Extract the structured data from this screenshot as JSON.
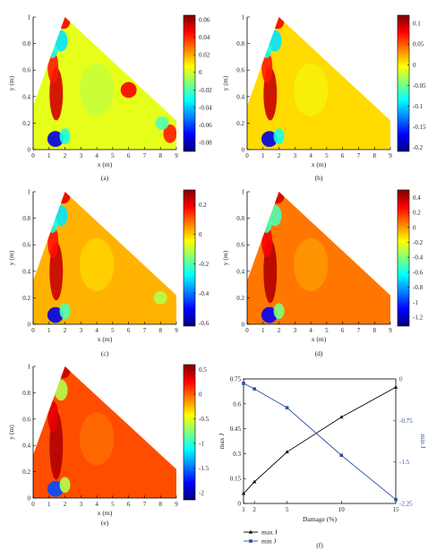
{
  "colormap": [
    "#00007f",
    "#0000ff",
    "#0080ff",
    "#00ffff",
    "#80ff80",
    "#ffff00",
    "#ff8000",
    "#ff0000",
    "#7f0000"
  ],
  "chart_data": [
    {
      "panel": "(a)",
      "type": "heatmap",
      "xlabel": "x (m)",
      "ylabel": "y (m)",
      "xlim": [
        0,
        9
      ],
      "ylim": [
        0,
        1
      ],
      "xticks": [
        "0",
        "1",
        "2",
        "3",
        "4",
        "5",
        "6",
        "7",
        "8",
        "9"
      ],
      "yticks": [
        "0",
        "0.2",
        "0.4",
        "0.6",
        "0.8",
        "1"
      ],
      "colorbar": {
        "min": -0.09,
        "max": 0.065,
        "ticks": [
          "0.06",
          "0.04",
          "0.02",
          "0",
          "-0.02",
          "-0.04",
          "-0.06",
          "-0.08"
        ]
      },
      "domain": "triangle with vertices (0,0.33), (2,1), (9,0.22), (9,0)"
    },
    {
      "panel": "(b)",
      "type": "heatmap",
      "xlabel": "x (m)",
      "ylabel": "y (m)",
      "xlim": [
        0,
        9
      ],
      "ylim": [
        0,
        1
      ],
      "xticks": [
        "0",
        "1",
        "2",
        "3",
        "4",
        "5",
        "6",
        "7",
        "8",
        "9"
      ],
      "yticks": [
        "0",
        "0.2",
        "0.4",
        "0.6",
        "0.8",
        "1"
      ],
      "colorbar": {
        "min": -0.21,
        "max": 0.12,
        "ticks": [
          "0.1",
          "0.05",
          "0",
          "-0.05",
          "-0.1",
          "-0.15",
          "-0.2"
        ]
      }
    },
    {
      "panel": "(c)",
      "type": "heatmap",
      "xlabel": "x (m)",
      "ylabel": "y (m)",
      "xlim": [
        0,
        9
      ],
      "ylim": [
        0,
        1
      ],
      "xticks": [
        "0",
        "1",
        "2",
        "3",
        "4",
        "5",
        "6",
        "7",
        "8",
        "9"
      ],
      "yticks": [
        "0",
        "0.2",
        "0.4",
        "0.6",
        "0.8",
        "1"
      ],
      "colorbar": {
        "min": -0.62,
        "max": 0.3,
        "ticks": [
          "0.2",
          "0",
          "-0.2",
          "-0.4",
          "-0.6"
        ]
      }
    },
    {
      "panel": "(d)",
      "type": "heatmap",
      "xlabel": "x (m)",
      "ylabel": "y (m)",
      "xlim": [
        0,
        9
      ],
      "ylim": [
        0,
        1
      ],
      "xticks": [
        "0",
        "1",
        "2",
        "3",
        "4",
        "5",
        "6",
        "7",
        "8",
        "9"
      ],
      "yticks": [
        "0",
        "0.2",
        "0.4",
        "0.6",
        "0.8",
        "1"
      ],
      "colorbar": {
        "min": -1.32,
        "max": 0.5,
        "ticks": [
          "0.4",
          "0.2",
          "0",
          "-0.2",
          "-0.4",
          "-0.6",
          "-0.8",
          "-1",
          "-1.2"
        ]
      }
    },
    {
      "panel": "(e)",
      "type": "heatmap",
      "xlabel": "x (m)",
      "ylabel": "y (m)",
      "xlim": [
        0,
        9
      ],
      "ylim": [
        0,
        1
      ],
      "xticks": [
        "0",
        "1",
        "2",
        "3",
        "4",
        "5",
        "6",
        "7",
        "8",
        "9"
      ],
      "yticks": [
        "0",
        "0.2",
        "0.4",
        "0.6",
        "0.8",
        "1"
      ],
      "colorbar": {
        "min": -2.15,
        "max": 0.6,
        "ticks": [
          "0.5",
          "0",
          "-0.5",
          "-1",
          "-1.5",
          "-2"
        ]
      }
    },
    {
      "panel": "(f)",
      "type": "line",
      "xlabel": "Damage (%)",
      "ylabel": "max J",
      "ylabel_right": "min J",
      "xlim": [
        1,
        15
      ],
      "ylim": [
        0,
        0.75
      ],
      "ylim_right": [
        -2.25,
        0
      ],
      "xticks": [
        "1",
        "2",
        "5",
        "10",
        "15"
      ],
      "yticks": [
        "0",
        "0.15",
        "0.3",
        "0.45",
        "0.6",
        "0.75"
      ],
      "yticks_right": [
        "0",
        "-0.75",
        "-1.5",
        "-2.25"
      ],
      "series": [
        {
          "name": "max J",
          "axis": "left",
          "color": "#000000",
          "x": [
            1,
            2,
            5,
            10,
            15
          ],
          "y": [
            0.06,
            0.13,
            0.31,
            0.52,
            0.7
          ]
        },
        {
          "name": "min J",
          "axis": "right",
          "color": "#2b4f9e",
          "x": [
            1,
            2,
            5,
            10,
            15
          ],
          "y": [
            -0.08,
            -0.18,
            -0.52,
            -1.38,
            -2.18
          ]
        }
      ],
      "legend": "bottom-left"
    }
  ]
}
